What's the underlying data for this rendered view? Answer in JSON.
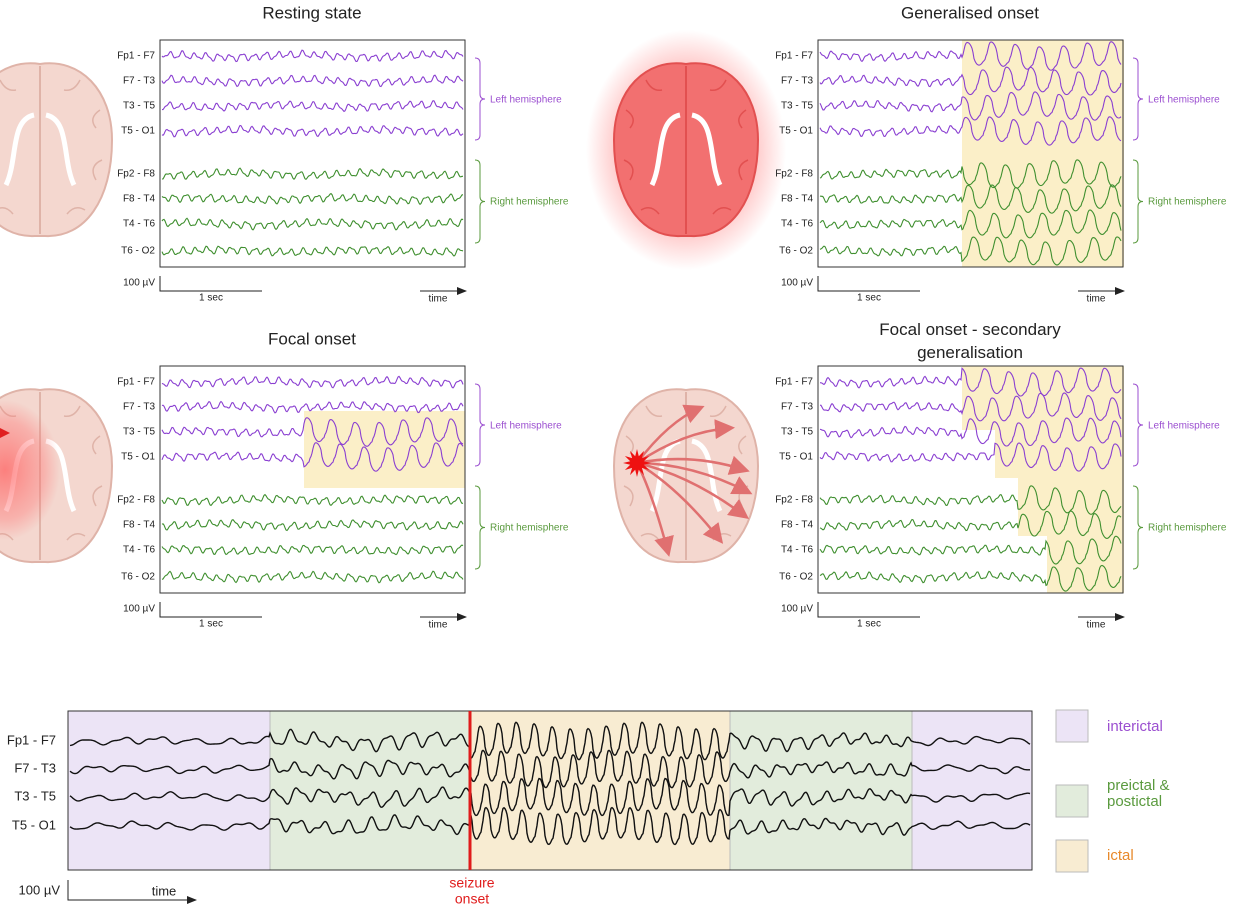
{
  "panels": [
    {
      "title": [
        "Resting state"
      ],
      "channels": [
        "Fp1 - F7",
        "F7 - T3",
        "T3 - T5",
        "T5 - O1",
        "Fp2 - F8",
        "F8 - T4",
        "T4 - T6",
        "T6 - O2"
      ],
      "groups": [
        "Left hemisphere",
        "Right hemisphere"
      ],
      "amplitude_scale": "100 µV",
      "time_scale": "1 sec",
      "time_label": "time"
    },
    {
      "title": [
        "Generalised onset"
      ],
      "channels": [
        "Fp1 - F7",
        "F7 - T3",
        "T3 - T5",
        "T5 - O1",
        "Fp2 - F8",
        "F8 - T4",
        "T4 - T6",
        "T6 - O2"
      ],
      "groups": [
        "Left hemisphere",
        "Right hemisphere"
      ],
      "amplitude_scale": "100 µV",
      "time_scale": "1 sec",
      "time_label": "time"
    },
    {
      "title": [
        "Focal onset"
      ],
      "channels": [
        "Fp1 - F7",
        "F7 - T3",
        "T3 - T5",
        "T5 - O1",
        "Fp2 - F8",
        "F8 - T4",
        "T4 - T6",
        "T6 - O2"
      ],
      "groups": [
        "Left hemisphere",
        "Right hemisphere"
      ],
      "amplitude_scale": "100 µV",
      "time_scale": "1 sec",
      "time_label": "time"
    },
    {
      "title": [
        "Focal onset - secondary",
        "generalisation"
      ],
      "channels": [
        "Fp1 - F7",
        "F7 - T3",
        "T3 - T5",
        "T5 - O1",
        "Fp2 - F8",
        "F8 - T4",
        "T4 - T6",
        "T6 - O2"
      ],
      "groups": [
        "Left hemisphere",
        "Right hemisphere"
      ],
      "amplitude_scale": "100 µV",
      "time_scale": "1 sec",
      "time_label": "time"
    }
  ],
  "timeline": {
    "channels": [
      "Fp1 - F7",
      "F7 - T3",
      "T3 - T5",
      "T5 - O1"
    ],
    "amplitude_scale": "100 µV",
    "time_label": "time",
    "onset_label": [
      "seizure",
      "onset"
    ]
  },
  "legend": [
    {
      "label": [
        "interictal"
      ]
    },
    {
      "label": [
        "preictal &",
        "postictal"
      ]
    },
    {
      "label": [
        "ictal"
      ]
    }
  ]
}
